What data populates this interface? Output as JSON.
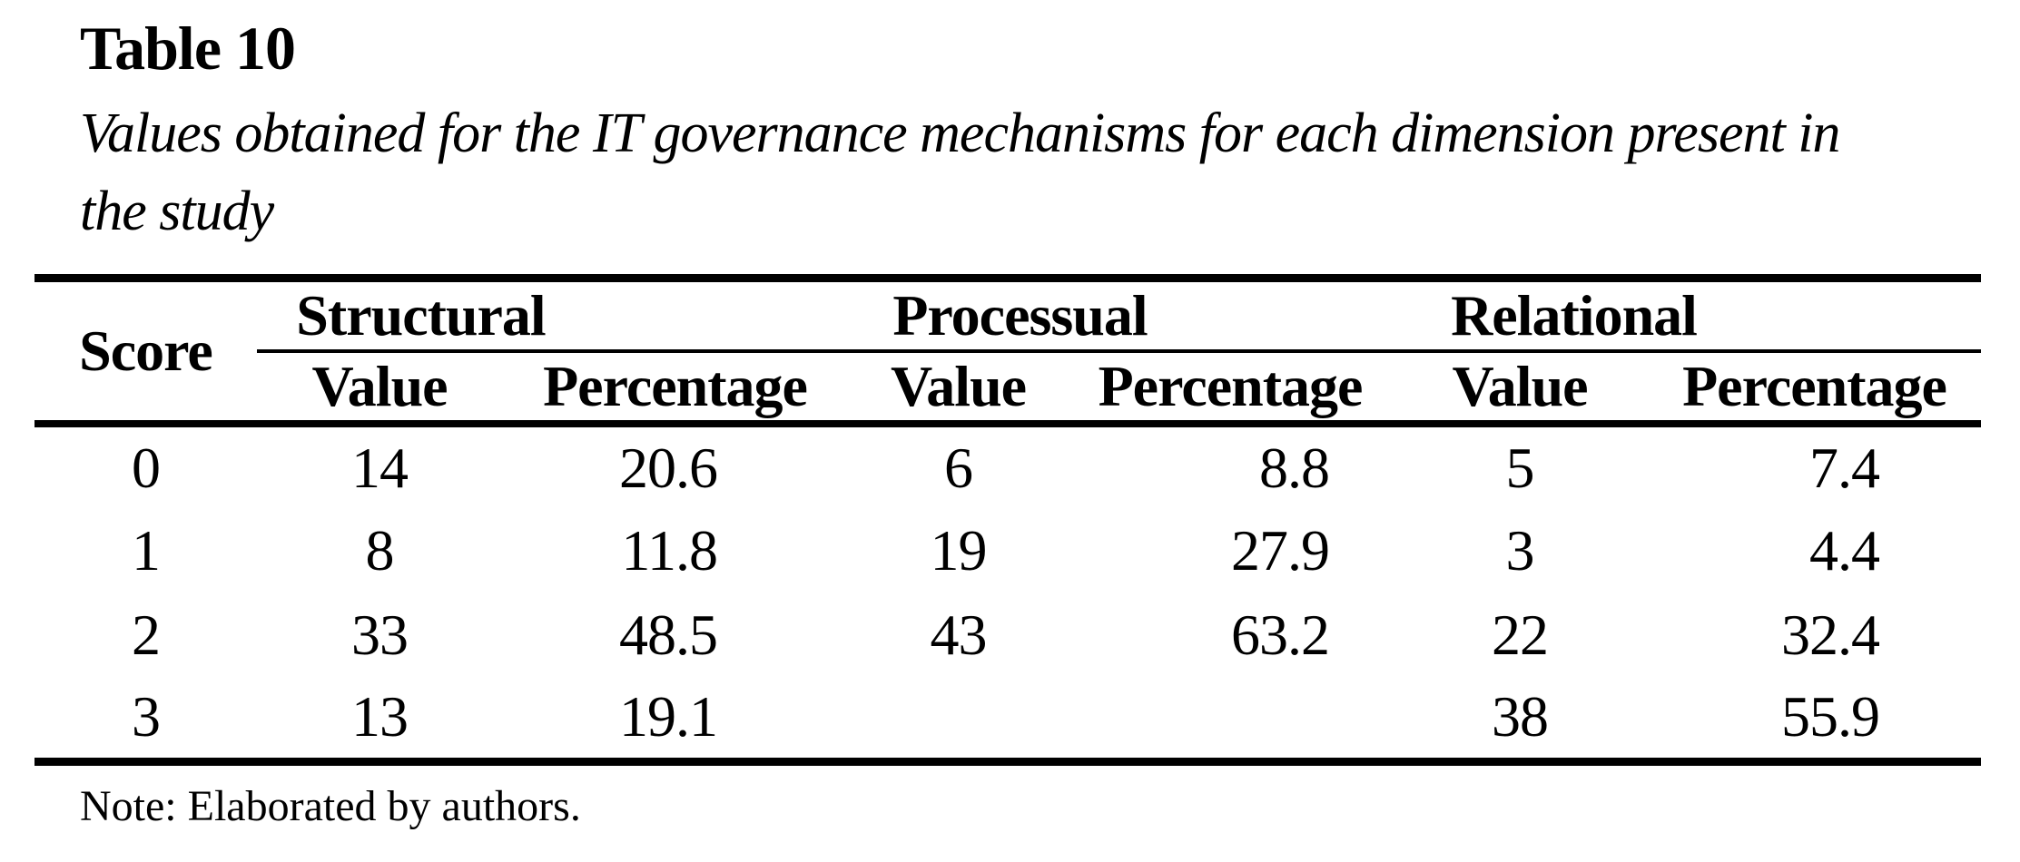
{
  "document": {
    "table_label": "Table 10",
    "caption": "Values obtained for the IT governance mechanisms for each dimension present in the study",
    "note": "Note: Elaborated by authors."
  },
  "table": {
    "corner_header": "Score",
    "groups": [
      {
        "label": "Structural"
      },
      {
        "label": "Processual"
      },
      {
        "label": "Relational"
      }
    ],
    "sub_headers": [
      "Value",
      "Percentage",
      "Value",
      "Percentage",
      "Value",
      "Percentage"
    ],
    "rows": [
      {
        "score": "0",
        "cells": [
          "14",
          "20.6",
          "6",
          "8.8",
          "5",
          "7.4"
        ]
      },
      {
        "score": "1",
        "cells": [
          "8",
          "11.8",
          "19",
          "27.9",
          "3",
          "4.4"
        ]
      },
      {
        "score": "2",
        "cells": [
          "33",
          "48.5",
          "43",
          "63.2",
          "22",
          "32.4"
        ]
      },
      {
        "score": "3",
        "cells": [
          "13",
          "19.1",
          "",
          "",
          "38",
          "55.9"
        ]
      }
    ]
  }
}
